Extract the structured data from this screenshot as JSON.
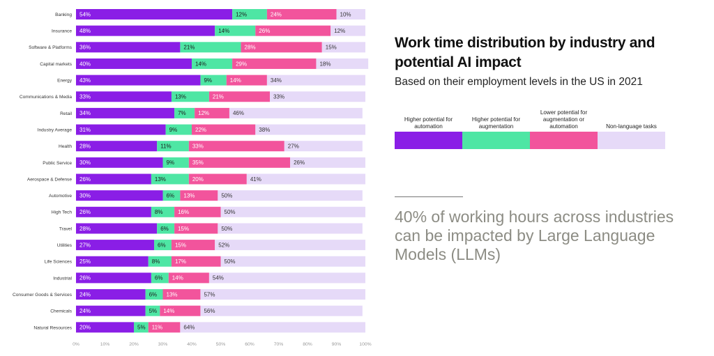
{
  "title": "Work time distribution by industry and potential AI impact",
  "subtitle": "Based on their employment levels in the US in 2021",
  "legend": [
    {
      "label": "Higher potential for automation",
      "color": "#8a1ee6"
    },
    {
      "label": "Higher potential for augmentation",
      "color": "#4ee6a4"
    },
    {
      "label": "Lower potential for augmentation or automation",
      "color": "#f2549c"
    },
    {
      "label": "Non-language tasks",
      "color": "#e6daf8"
    }
  ],
  "callout": "40% of working hours across industries can be impacted by Large Language Models (LLMs)",
  "chart_data": {
    "type": "bar",
    "orientation": "horizontal",
    "stacked": true,
    "categories": [
      "Banking",
      "Insurance",
      "Software & Platforms",
      "Capital markets",
      "Energy",
      "Communications & Media",
      "Retail",
      "Industry Average",
      "Health",
      "Public Service",
      "Aerospace & Defense",
      "Automotive",
      "High Tech",
      "Travel",
      "Utilities",
      "Life Sciences",
      "Industrial",
      "Consumer Goods & Services",
      "Chemicals",
      "Natural Resources"
    ],
    "series": [
      {
        "name": "Higher potential for automation",
        "color": "#8a1ee6",
        "values": [
          54,
          48,
          36,
          40,
          43,
          33,
          34,
          31,
          28,
          30,
          26,
          30,
          26,
          28,
          27,
          25,
          26,
          24,
          24,
          20
        ]
      },
      {
        "name": "Higher potential for augmentation",
        "color": "#4ee6a4",
        "values": [
          12,
          14,
          21,
          14,
          9,
          13,
          7,
          9,
          11,
          9,
          13,
          6,
          8,
          6,
          6,
          8,
          6,
          6,
          5,
          5
        ]
      },
      {
        "name": "Lower potential for augmentation or automation",
        "color": "#f2549c",
        "values": [
          24,
          26,
          28,
          29,
          14,
          21,
          12,
          22,
          33,
          35,
          20,
          13,
          16,
          15,
          15,
          17,
          14,
          13,
          14,
          11
        ]
      },
      {
        "name": "Non-language tasks",
        "color": "#e6daf8",
        "values": [
          10,
          12,
          15,
          18,
          34,
          33,
          46,
          38,
          27,
          26,
          41,
          50,
          50,
          50,
          52,
          50,
          54,
          57,
          56,
          64
        ]
      }
    ],
    "value_suffix": "%",
    "xlim": [
      0,
      100
    ],
    "xticks": [
      "0%",
      "10%",
      "20%",
      "30%",
      "40%",
      "50%",
      "60%",
      "70%",
      "80%",
      "90%",
      "100%"
    ],
    "grid": false
  }
}
